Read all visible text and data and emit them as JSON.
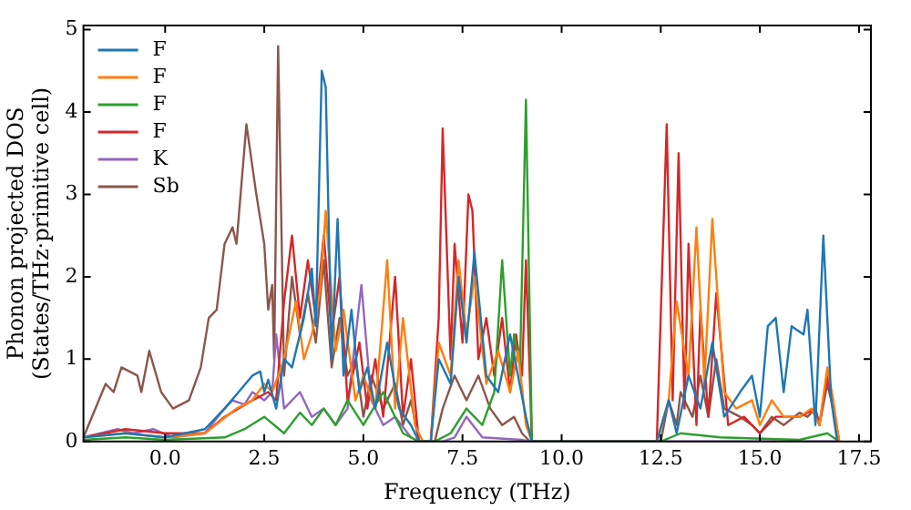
{
  "chart_data": {
    "type": "line",
    "xlabel": "Frequency (THz)",
    "ylabel": "Phonon projected DOS\n(States/THz·primitive cell)",
    "xlim": [
      -2.06,
      17.8
    ],
    "ylim": [
      0,
      5.05
    ],
    "xticks": [
      {
        "value": 0,
        "label": "0.0"
      },
      {
        "value": 2.5,
        "label": "2.5"
      },
      {
        "value": 5,
        "label": "5.0"
      },
      {
        "value": 7.5,
        "label": "7.5"
      },
      {
        "value": 10,
        "label": "10.0"
      },
      {
        "value": 12.5,
        "label": "12.5"
      },
      {
        "value": 15,
        "label": "15.0"
      },
      {
        "value": 17.5,
        "label": "17.5"
      }
    ],
    "yticks": [
      0,
      1,
      2,
      3,
      4,
      5
    ],
    "grid": false,
    "legend": "top left",
    "marker": "none",
    "line_style": "solid",
    "series": [
      {
        "name": "F",
        "color": "#1f77b4",
        "x": [
          -2.06,
          -1.0,
          0,
          1.0,
          1.5,
          2.2,
          2.4,
          2.5,
          2.6,
          2.8,
          3.0,
          3.2,
          3.5,
          3.7,
          3.8,
          3.95,
          4.05,
          4.2,
          4.35,
          4.5,
          4.7,
          4.9,
          5.1,
          5.3,
          5.6,
          5.9,
          6.2,
          6.4,
          6.7,
          6.9,
          7.2,
          7.4,
          7.6,
          7.8,
          8.1,
          8.4,
          8.7,
          8.9,
          9.1,
          9.25,
          12.4,
          12.7,
          12.9,
          13.2,
          13.5,
          13.8,
          14.1,
          14.5,
          14.8,
          15.0,
          15.2,
          15.4,
          15.6,
          15.8,
          16.1,
          16.2,
          16.4,
          16.6,
          16.8,
          16.95
        ],
        "values": [
          0.05,
          0.1,
          0.05,
          0.15,
          0.4,
          0.8,
          0.85,
          0.6,
          0.75,
          0.4,
          1.0,
          0.9,
          1.5,
          2.1,
          1.4,
          4.5,
          4.3,
          1.0,
          2.7,
          0.8,
          1.6,
          0.6,
          0.9,
          0.4,
          1.2,
          0.4,
          0.2,
          0,
          0,
          1.0,
          0.7,
          2.0,
          1.2,
          2.3,
          0.8,
          0.6,
          1.3,
          0.8,
          0.3,
          0,
          0,
          0.5,
          0.1,
          0.8,
          0.4,
          1.2,
          0.3,
          0.6,
          0.8,
          0.3,
          1.4,
          1.5,
          0.6,
          1.4,
          1.3,
          1.6,
          0.2,
          2.5,
          0.5,
          0
        ]
      },
      {
        "name": "F",
        "color": "#ff7f0e",
        "x": [
          -2.06,
          -1.0,
          0,
          1.0,
          1.8,
          2.2,
          2.5,
          2.7,
          3.0,
          3.3,
          3.5,
          3.7,
          3.9,
          4.05,
          4.3,
          4.5,
          4.8,
          5.0,
          5.3,
          5.6,
          5.8,
          6.0,
          6.3,
          6.5,
          6.7,
          6.9,
          7.2,
          7.4,
          7.6,
          7.8,
          8.1,
          8.4,
          8.7,
          8.9,
          9.1,
          9.25,
          12.4,
          12.7,
          12.9,
          13.2,
          13.4,
          13.6,
          13.8,
          14.1,
          14.4,
          14.8,
          15.0,
          15.3,
          15.6,
          16.0,
          16.3,
          16.5,
          16.7,
          16.85,
          17.0
        ],
        "values": [
          0.05,
          0.1,
          0.05,
          0.1,
          0.4,
          0.5,
          0.7,
          0.6,
          1.0,
          1.7,
          1.0,
          1.3,
          1.8,
          2.8,
          1.1,
          1.6,
          0.5,
          0.8,
          0.4,
          2.2,
          0.4,
          1.5,
          0.2,
          0,
          0,
          1.2,
          0.8,
          2.2,
          1.3,
          2.0,
          0.7,
          1.1,
          0.6,
          1.1,
          0.2,
          0,
          0,
          0.5,
          1.7,
          0.8,
          2.6,
          0.7,
          2.7,
          0.6,
          0.4,
          0.5,
          0.2,
          0.5,
          0.3,
          0.3,
          0.4,
          0.2,
          0.9,
          0.5,
          0
        ]
      },
      {
        "name": "F",
        "color": "#2ca02c",
        "x": [
          -2.06,
          -1.0,
          0,
          1.5,
          2.0,
          2.5,
          3.0,
          3.4,
          3.7,
          4.0,
          4.3,
          4.6,
          5.0,
          5.5,
          6.0,
          6.4,
          6.8,
          7.2,
          7.6,
          8.0,
          8.3,
          8.5,
          8.7,
          8.8,
          8.95,
          9.1,
          9.25,
          12.5,
          13.0,
          14.0,
          16.0,
          16.7,
          17.0
        ],
        "values": [
          0.02,
          0.05,
          0.02,
          0.05,
          0.15,
          0.3,
          0.1,
          0.35,
          0.2,
          0.4,
          0.2,
          0.5,
          0.2,
          0.6,
          0.1,
          0,
          0,
          0.1,
          0.4,
          0.2,
          0.6,
          2.2,
          0.8,
          1.3,
          0.9,
          4.15,
          0,
          0,
          0.1,
          0.05,
          0.02,
          0.1,
          0
        ]
      },
      {
        "name": "F",
        "color": "#d62728",
        "x": [
          -2.06,
          -1.0,
          0,
          1.0,
          1.5,
          2.2,
          2.6,
          2.8,
          3.0,
          3.2,
          3.4,
          3.6,
          3.8,
          4.0,
          4.2,
          4.4,
          4.6,
          4.9,
          5.1,
          5.3,
          5.5,
          5.8,
          6.0,
          6.2,
          6.4,
          6.7,
          6.9,
          7.0,
          7.2,
          7.3,
          7.5,
          7.65,
          7.75,
          7.9,
          8.1,
          8.3,
          8.5,
          8.7,
          8.85,
          9.0,
          9.1,
          9.25,
          12.4,
          12.65,
          12.8,
          12.95,
          13.1,
          13.2,
          13.4,
          13.5,
          13.7,
          13.9,
          14.2,
          14.6,
          15.0,
          15.4,
          16.0,
          16.4,
          16.5,
          16.7,
          16.85,
          17.0
        ],
        "values": [
          0.05,
          0.15,
          0.1,
          0.1,
          0.3,
          0.5,
          0.6,
          0.5,
          1.7,
          2.5,
          1.5,
          2.2,
          1.5,
          2.5,
          1.3,
          2.0,
          0.5,
          1.2,
          0.4,
          1.0,
          0.3,
          2.0,
          0.3,
          1.0,
          0,
          0,
          1.5,
          3.8,
          1.0,
          2.4,
          1.2,
          3.0,
          2.8,
          1.0,
          1.5,
          0.8,
          1.5,
          0.6,
          1.3,
          0.8,
          2.2,
          0,
          0,
          3.85,
          0.5,
          3.5,
          0.4,
          2.4,
          0.2,
          1.6,
          0.3,
          1.8,
          0.2,
          0.3,
          0.1,
          0.3,
          0.3,
          0.4,
          0.2,
          0.8,
          0.4,
          0
        ]
      },
      {
        "name": "K",
        "color": "#9467bd",
        "x": [
          -2.06,
          -1.2,
          -0.8,
          -0.3,
          0.2,
          1.0,
          1.5,
          1.7,
          2.0,
          2.2,
          2.5,
          2.7,
          2.8,
          3.0,
          3.4,
          3.7,
          4.0,
          4.3,
          4.6,
          4.95,
          5.2,
          5.5,
          5.8,
          6.2,
          6.4,
          7.0,
          7.3,
          7.6,
          8.0,
          9.0,
          9.2,
          17.0
        ],
        "values": [
          0.05,
          0.15,
          0.1,
          0.15,
          0.05,
          0.1,
          0.4,
          0.5,
          0.45,
          0.6,
          0.5,
          0.6,
          1.3,
          0.4,
          0.6,
          0.3,
          0.4,
          0.2,
          0.4,
          1.9,
          0.5,
          0.2,
          0.3,
          0.05,
          0,
          0,
          0.05,
          0.3,
          0.05,
          0.02,
          0,
          0
        ]
      },
      {
        "name": "Sb",
        "color": "#8c564b",
        "x": [
          -2.06,
          -1.5,
          -1.3,
          -1.1,
          -0.7,
          -0.6,
          -0.4,
          -0.1,
          0.2,
          0.6,
          0.9,
          1.1,
          1.3,
          1.5,
          1.7,
          1.8,
          2.05,
          2.3,
          2.5,
          2.6,
          2.7,
          2.75,
          2.85,
          3.0,
          3.2,
          3.4,
          3.6,
          3.8,
          4.0,
          4.2,
          4.4,
          4.6,
          4.8,
          5.0,
          5.2,
          5.5,
          5.8,
          6.0,
          6.2,
          6.4,
          6.8,
          7.0,
          7.3,
          7.6,
          7.9,
          8.2,
          8.5,
          8.8,
          9.0,
          9.2,
          12.5,
          12.7,
          12.9,
          13.0,
          13.3,
          13.5,
          13.7,
          13.9,
          14.1,
          14.5,
          14.8,
          15.0,
          15.3,
          15.6,
          16.0,
          16.2,
          16.4,
          16.5,
          16.7,
          16.85,
          17.0
        ],
        "values": [
          0.05,
          0.7,
          0.6,
          0.9,
          0.8,
          0.6,
          1.1,
          0.6,
          0.4,
          0.5,
          0.9,
          1.5,
          1.6,
          2.4,
          2.6,
          2.4,
          3.85,
          3.0,
          2.4,
          1.6,
          1.9,
          1.0,
          4.8,
          0.8,
          2.0,
          1.3,
          1.8,
          1.2,
          2.2,
          0.9,
          1.5,
          0.8,
          1.0,
          0.3,
          0.8,
          0.4,
          0.7,
          0.2,
          0.5,
          0,
          0,
          0.4,
          0.8,
          0.5,
          0.8,
          0.4,
          0.2,
          0.3,
          0.1,
          0,
          0,
          0.5,
          0.2,
          0.6,
          0.3,
          0.8,
          0.3,
          1.0,
          0.4,
          0.3,
          0.2,
          0.1,
          0.3,
          0.2,
          0.35,
          0.3,
          0.4,
          0.2,
          0.7,
          0.4,
          0
        ]
      }
    ]
  }
}
